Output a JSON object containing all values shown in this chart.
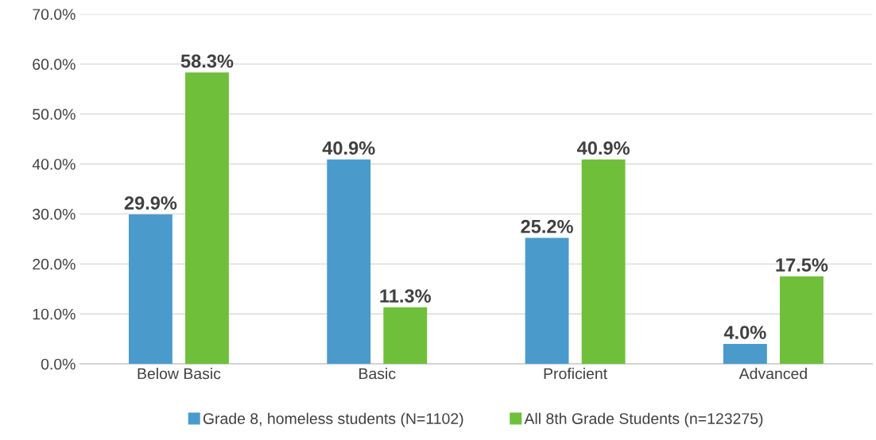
{
  "chart_data": {
    "type": "bar",
    "categories": [
      "Below Basic",
      "Basic",
      "Proficient",
      "Advanced"
    ],
    "series": [
      {
        "name": "Grade 8, homeless students (N=1102)",
        "color": "#4a9bcb",
        "values": [
          29.9,
          40.9,
          25.2,
          4.0
        ],
        "value_labels": [
          "29.9%",
          "40.9%",
          "25.2%",
          "4.0%"
        ]
      },
      {
        "name": "All 8th Grade Students (n=123275)",
        "color": "#6fbf3a",
        "values": [
          58.3,
          11.3,
          40.9,
          17.5
        ],
        "value_labels": [
          "58.3%",
          "11.3%",
          "40.9%",
          "17.5%"
        ]
      }
    ],
    "ylim": [
      0,
      70
    ],
    "yticks": [
      {
        "value": 0,
        "label": "0.0%"
      },
      {
        "value": 10,
        "label": "10.0%"
      },
      {
        "value": 20,
        "label": "20.0%"
      },
      {
        "value": 30,
        "label": "30.0%"
      },
      {
        "value": 40,
        "label": "40.0%"
      },
      {
        "value": 50,
        "label": "50.0%"
      },
      {
        "value": 60,
        "label": "60.0%"
      },
      {
        "value": 70,
        "label": "70.0%"
      }
    ],
    "grid": "y",
    "legend": "bottom"
  }
}
